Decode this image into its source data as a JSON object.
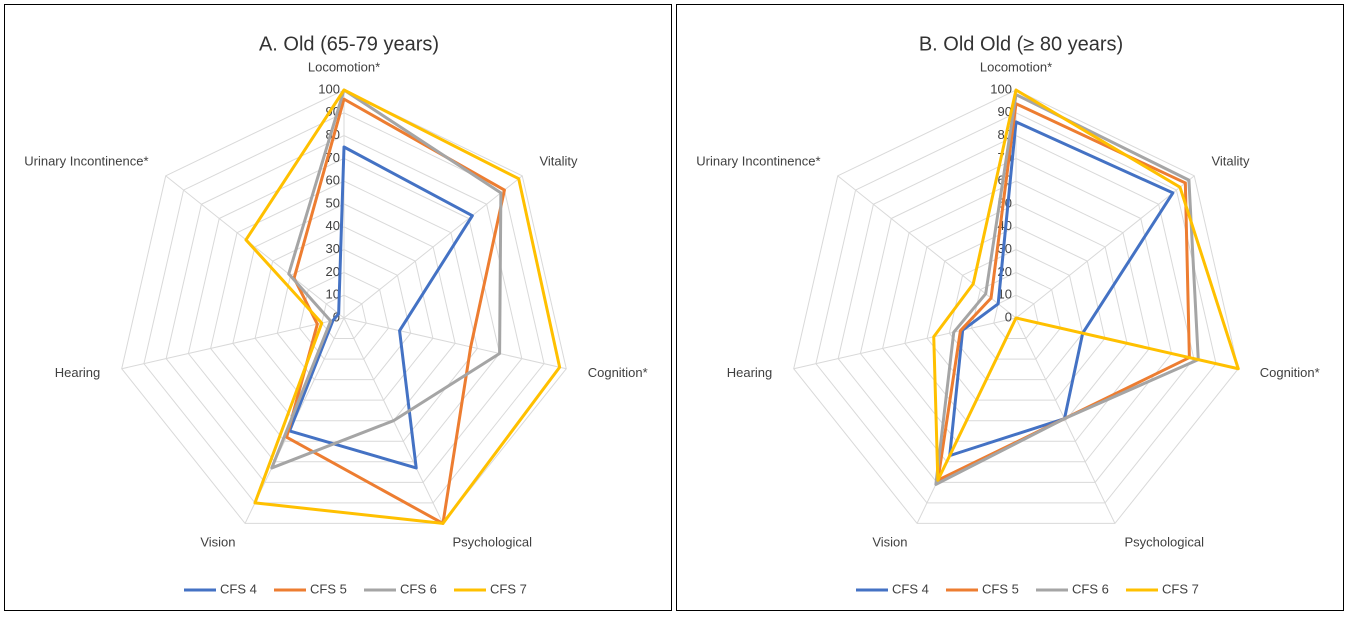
{
  "chart_data": [
    {
      "type": "radar",
      "title": "A. Old (65-79 years)",
      "categories": [
        "Locomotion*",
        "Vitality",
        "Cognition*",
        "Psychological",
        "Vision",
        "Hearing",
        "Urinary Incontinence*"
      ],
      "series": [
        {
          "name": "CFS 4",
          "color": "#4472c4",
          "values": [
            75,
            72,
            25,
            73,
            55,
            5,
            3
          ]
        },
        {
          "name": "CFS 5",
          "color": "#ed7d31",
          "values": [
            96,
            90,
            57,
            100,
            58,
            12,
            28
          ]
        },
        {
          "name": "CFS 6",
          "color": "#a5a5a5",
          "values": [
            100,
            88,
            70,
            50,
            73,
            6,
            31
          ]
        },
        {
          "name": "CFS 7",
          "color": "#ffc000",
          "values": [
            100,
            98,
            97,
            100,
            90,
            10,
            55
          ]
        }
      ],
      "ylim": [
        0,
        100
      ],
      "yticks": [
        0,
        10,
        20,
        30,
        40,
        50,
        60,
        70,
        80,
        90,
        100
      ],
      "grid": true
    },
    {
      "type": "radar",
      "title": "B. Old Old (≥ 80 years)",
      "categories": [
        "Locomotion*",
        "Vitality",
        "Cognition*",
        "Psychological",
        "Vision",
        "Hearing",
        "Urinary Incontinence*"
      ],
      "series": [
        {
          "name": "CFS 4",
          "color": "#4472c4",
          "values": [
            86,
            88,
            30,
            49,
            67,
            24,
            10
          ]
        },
        {
          "name": "CFS 5",
          "color": "#ed7d31",
          "values": [
            94,
            95,
            78,
            49,
            79,
            25,
            14
          ]
        },
        {
          "name": "CFS 6",
          "color": "#a5a5a5",
          "values": [
            98,
            97,
            82,
            49,
            81,
            28,
            17
          ]
        },
        {
          "name": "CFS 7",
          "color": "#ffc000",
          "values": [
            100,
            92,
            100,
            0,
            79,
            37,
            24
          ]
        }
      ],
      "ylim": [
        0,
        100
      ],
      "yticks": [
        0,
        10,
        20,
        30,
        40,
        50,
        60,
        70,
        80,
        90,
        100
      ],
      "grid": true
    }
  ]
}
